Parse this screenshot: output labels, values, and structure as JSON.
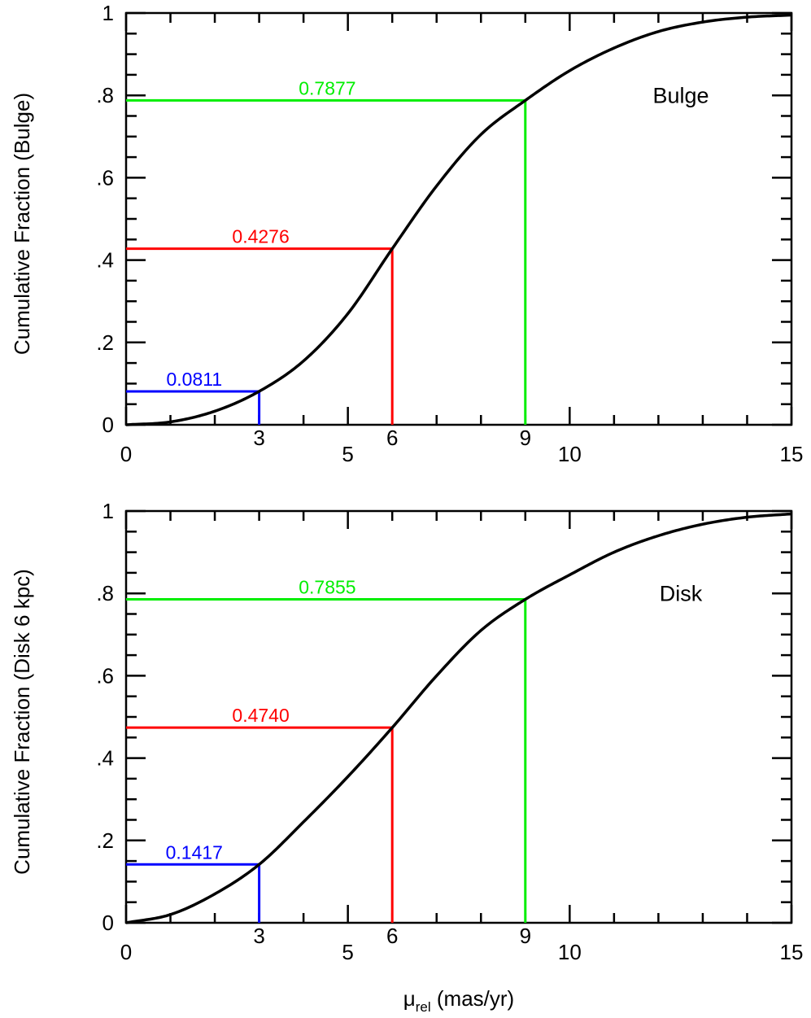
{
  "colors": {
    "curve": "#000000",
    "blue": "#0000ff",
    "red": "#ff0000",
    "green": "#00ee00"
  },
  "xlabel": {
    "main": "μ",
    "sub": "rel",
    "rest": " (mas/yr)"
  },
  "chart_data": [
    {
      "type": "line",
      "label": "Bulge",
      "ylabel": "Cumulative Fraction (Bulge)",
      "xlim": [
        0,
        15
      ],
      "ylim": [
        0,
        1
      ],
      "x_ticks": [
        "0",
        "5",
        "10",
        "15"
      ],
      "y_ticks": [
        "0",
        ".2",
        ".4",
        ".6",
        ".8",
        "1"
      ],
      "series": [
        {
          "x": [
            0,
            1,
            2,
            3,
            4,
            5,
            6,
            7,
            8,
            9,
            10,
            11,
            12,
            13,
            14,
            15
          ],
          "y": [
            0.0,
            0.007,
            0.033,
            0.0811,
            0.155,
            0.27,
            0.4276,
            0.58,
            0.705,
            0.7877,
            0.86,
            0.915,
            0.955,
            0.978,
            0.99,
            0.995
          ]
        }
      ],
      "markers": [
        {
          "x": 3,
          "x_label": "3",
          "y": 0.0811,
          "value_label": "0.0811",
          "color": "blue"
        },
        {
          "x": 6,
          "x_label": "6",
          "y": 0.4276,
          "value_label": "0.4276",
          "color": "red"
        },
        {
          "x": 9,
          "x_label": "9",
          "y": 0.7877,
          "value_label": "0.7877",
          "color": "green"
        }
      ]
    },
    {
      "type": "line",
      "label": "Disk",
      "ylabel": "Cumulative Fraction (Disk 6 kpc)",
      "xlim": [
        0,
        15
      ],
      "ylim": [
        0,
        1
      ],
      "x_ticks": [
        "0",
        "5",
        "10",
        "15"
      ],
      "y_ticks": [
        "0",
        ".2",
        ".4",
        ".6",
        ".8",
        "1"
      ],
      "series": [
        {
          "x": [
            0,
            1,
            2,
            3,
            4,
            5,
            6,
            7,
            8,
            9,
            10,
            11,
            12,
            13,
            14,
            15
          ],
          "y": [
            0.0,
            0.02,
            0.07,
            0.1417,
            0.245,
            0.355,
            0.474,
            0.6,
            0.71,
            0.7855,
            0.845,
            0.9,
            0.94,
            0.968,
            0.985,
            0.993
          ]
        }
      ],
      "markers": [
        {
          "x": 3,
          "x_label": "3",
          "y": 0.1417,
          "value_label": "0.1417",
          "color": "blue"
        },
        {
          "x": 6,
          "x_label": "6",
          "y": 0.474,
          "value_label": "0.4740",
          "color": "red"
        },
        {
          "x": 9,
          "x_label": "9",
          "y": 0.7855,
          "value_label": "0.7855",
          "color": "green"
        }
      ]
    }
  ]
}
